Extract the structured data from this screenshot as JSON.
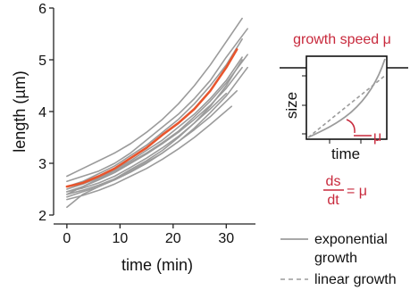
{
  "chart_data": [
    {
      "type": "line",
      "xlabel": "time (min)",
      "ylabel": "length (µm)",
      "xlim": [
        -2.5,
        35.5
      ],
      "ylim": [
        2,
        6
      ],
      "xticks": [
        0,
        10,
        20,
        30
      ],
      "yticks": [
        2,
        3,
        4,
        5,
        6
      ],
      "xtick_labels": [
        "0",
        "10",
        "20",
        "30"
      ],
      "ytick_labels": [
        "2",
        "3",
        "4",
        "5",
        "6"
      ],
      "grid": false,
      "colors": {
        "traces": "#9b9b9b",
        "highlight": "#e8552d",
        "accent": "#c8293c"
      },
      "series": [
        {
          "highlight": false,
          "x": [
            0,
            3,
            6,
            9,
            12,
            15,
            18,
            21,
            24,
            27,
            30,
            33
          ],
          "y": [
            2.75,
            2.9,
            3.05,
            3.2,
            3.38,
            3.6,
            3.85,
            4.15,
            4.5,
            4.9,
            5.35,
            5.8
          ]
        },
        {
          "highlight": false,
          "x": [
            0,
            3,
            6,
            9,
            12,
            15,
            18,
            21,
            24,
            27,
            30,
            34
          ],
          "y": [
            2.65,
            2.75,
            2.85,
            3.0,
            3.2,
            3.45,
            3.7,
            3.95,
            4.25,
            4.6,
            5.05,
            5.6
          ]
        },
        {
          "highlight": false,
          "x": [
            0,
            3,
            6,
            9,
            12,
            15,
            18,
            21,
            24,
            27,
            30,
            33
          ],
          "y": [
            2.55,
            2.65,
            2.8,
            2.95,
            3.15,
            3.35,
            3.6,
            3.85,
            4.15,
            4.5,
            4.9,
            5.4
          ]
        },
        {
          "highlight": false,
          "x": [
            0,
            3,
            6,
            9,
            12,
            15,
            18,
            21,
            24,
            27,
            30,
            33
          ],
          "y": [
            2.5,
            2.6,
            2.72,
            2.88,
            3.05,
            3.25,
            3.45,
            3.7,
            3.95,
            4.25,
            4.6,
            5.05
          ]
        },
        {
          "highlight": false,
          "x": [
            0,
            3,
            6,
            9,
            12,
            15,
            18,
            21,
            24,
            27,
            30,
            33
          ],
          "y": [
            2.45,
            2.55,
            2.68,
            2.82,
            3.0,
            3.18,
            3.38,
            3.6,
            3.85,
            4.12,
            4.45,
            4.85
          ]
        },
        {
          "highlight": false,
          "x": [
            0,
            3,
            6,
            9,
            12,
            15,
            18,
            21,
            24,
            27,
            30
          ],
          "y": [
            2.45,
            2.52,
            2.62,
            2.75,
            2.92,
            3.1,
            3.3,
            3.52,
            3.78,
            4.05,
            4.35
          ]
        },
        {
          "highlight": false,
          "x": [
            0,
            3,
            6,
            9,
            12,
            15,
            18,
            21,
            24,
            27,
            30,
            32
          ],
          "y": [
            2.4,
            2.48,
            2.58,
            2.7,
            2.85,
            3.02,
            3.2,
            3.42,
            3.65,
            3.9,
            4.2,
            4.4
          ]
        },
        {
          "highlight": false,
          "x": [
            0,
            3,
            6,
            9,
            12,
            15,
            18,
            21,
            24,
            27,
            30,
            34
          ],
          "y": [
            2.35,
            2.45,
            2.55,
            2.68,
            2.83,
            3.0,
            3.2,
            3.42,
            3.68,
            3.98,
            4.3,
            4.85
          ]
        },
        {
          "highlight": false,
          "x": [
            0,
            3,
            6,
            9,
            12,
            15,
            18,
            21,
            24,
            27,
            31
          ],
          "y": [
            2.3,
            2.38,
            2.48,
            2.6,
            2.75,
            2.9,
            3.08,
            3.28,
            3.5,
            3.75,
            4.1
          ]
        },
        {
          "highlight": false,
          "x": [
            0,
            3,
            6,
            9,
            12,
            15,
            18,
            21,
            24,
            27,
            30,
            34
          ],
          "y": [
            2.4,
            2.55,
            2.7,
            2.85,
            3.02,
            3.2,
            3.4,
            3.62,
            3.9,
            4.2,
            4.55,
            5.1
          ]
        },
        {
          "highlight": false,
          "x": [
            0,
            3,
            6,
            9,
            12,
            15,
            18,
            21,
            24,
            27,
            30,
            33
          ],
          "y": [
            2.15,
            2.4,
            2.55,
            2.7,
            2.88,
            3.05,
            3.25,
            3.5,
            3.78,
            4.1,
            4.5,
            5.0
          ]
        },
        {
          "highlight": true,
          "x": [
            0,
            3,
            6,
            9,
            12,
            15,
            18,
            21,
            24,
            27,
            30,
            32
          ],
          "y": [
            2.55,
            2.62,
            2.75,
            2.9,
            3.1,
            3.3,
            3.55,
            3.78,
            4.05,
            4.4,
            4.85,
            5.2
          ]
        }
      ]
    },
    {
      "type": "line",
      "title": "growth speed μ",
      "xlabel": "time",
      "ylabel": "size",
      "mu_label": "μ",
      "formula": {
        "numerator": "ds",
        "denominator": "dt",
        "rhs": "= μ"
      },
      "legend": [
        {
          "label": "exponential growth",
          "style": "solid"
        },
        {
          "label": "linear growth",
          "style": "dashed"
        }
      ]
    }
  ]
}
